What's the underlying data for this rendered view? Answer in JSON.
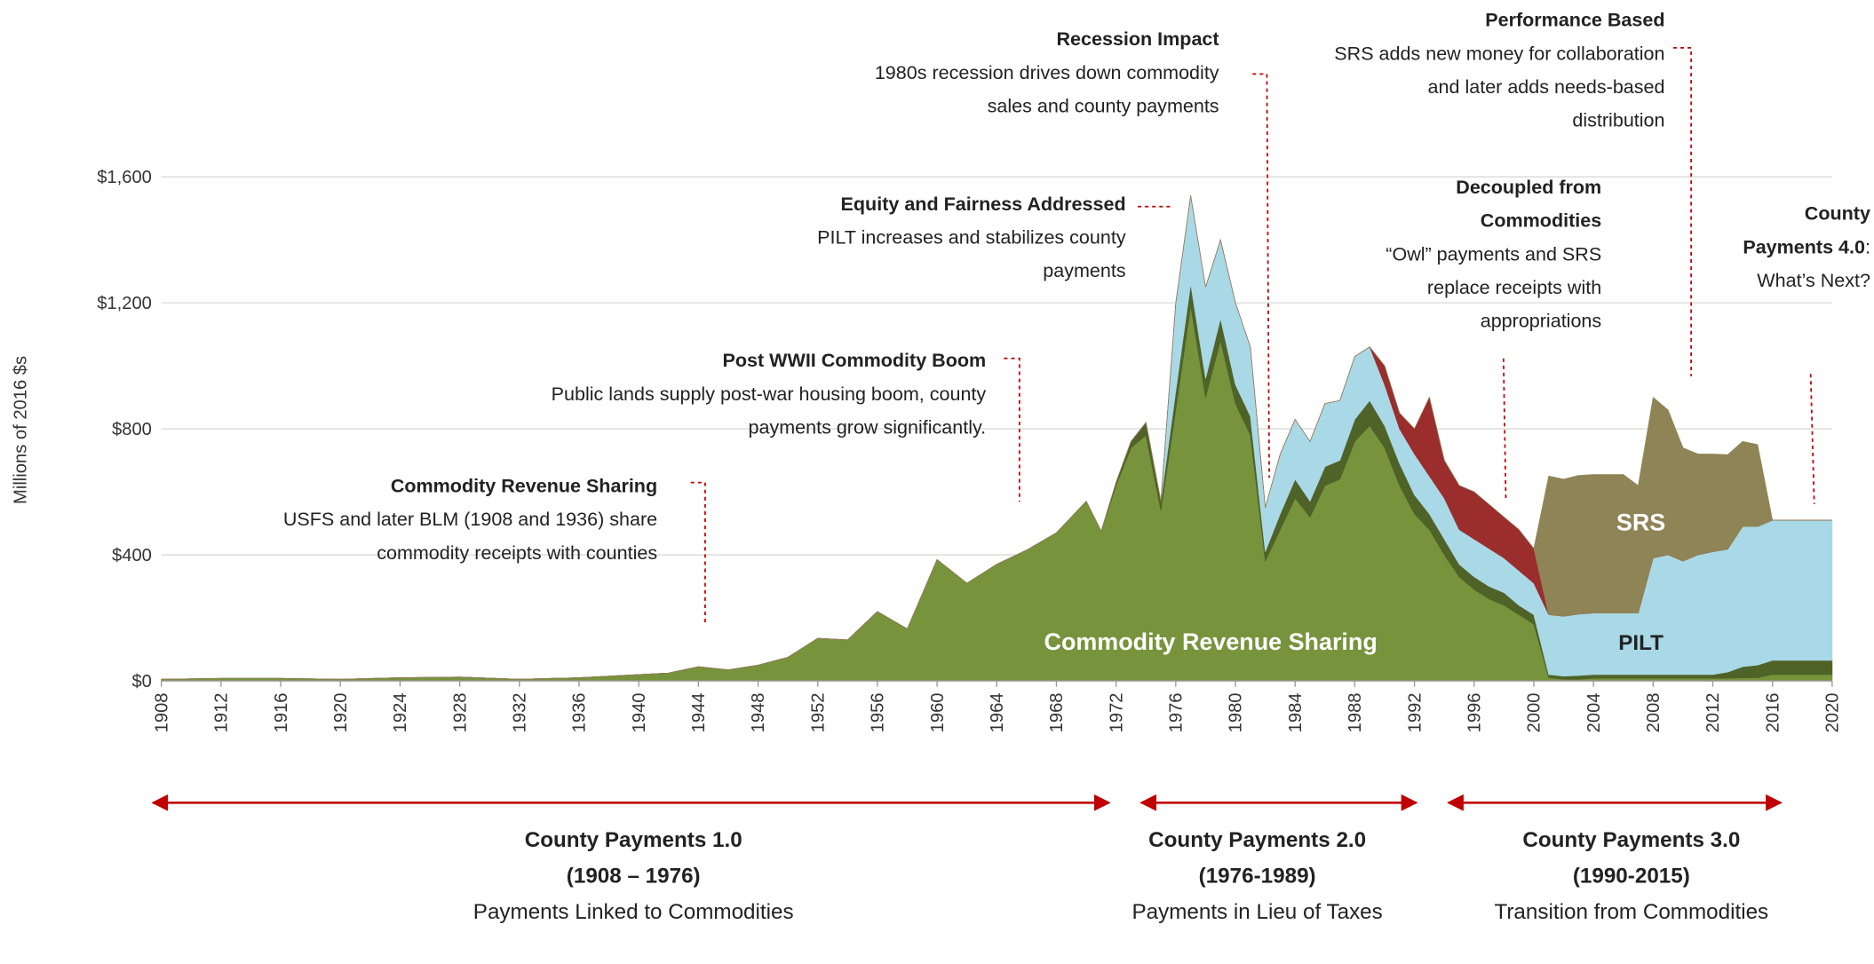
{
  "chart_data": {
    "type": "area",
    "y_label": "Millions of 2016 $s",
    "xlim": [
      1908,
      2020
    ],
    "ylim": [
      0,
      1600
    ],
    "grid": true,
    "yticks": [
      {
        "value": 0,
        "label": "$0"
      },
      {
        "value": 400,
        "label": "$400"
      },
      {
        "value": 800,
        "label": "$800"
      },
      {
        "value": 1200,
        "label": "$1,200"
      },
      {
        "value": 1600,
        "label": "$1,600"
      }
    ],
    "xticks": [
      1908,
      1912,
      1916,
      1920,
      1924,
      1928,
      1932,
      1936,
      1940,
      1944,
      1948,
      1952,
      1956,
      1960,
      1964,
      1968,
      1972,
      1976,
      1980,
      1984,
      1988,
      1992,
      1996,
      2000,
      2004,
      2008,
      2012,
      2016,
      2020
    ],
    "x": [
      1908,
      1912,
      1916,
      1920,
      1924,
      1928,
      1932,
      1936,
      1940,
      1942,
      1944,
      1946,
      1948,
      1950,
      1952,
      1954,
      1956,
      1958,
      1960,
      1962,
      1964,
      1966,
      1968,
      1970,
      1971,
      1972,
      1973,
      1974,
      1975,
      1976,
      1977,
      1978,
      1979,
      1980,
      1981,
      1982,
      1983,
      1984,
      1985,
      1986,
      1987,
      1988,
      1989,
      1990,
      1991,
      1992,
      1993,
      1994,
      1995,
      1996,
      1997,
      1998,
      1999,
      2000,
      2001,
      2002,
      2003,
      2004,
      2005,
      2006,
      2007,
      2008,
      2009,
      2010,
      2011,
      2012,
      2013,
      2014,
      2015,
      2016,
      2017,
      2018,
      2019,
      2020
    ],
    "series": [
      {
        "name": "Commodity Revenue Sharing",
        "color": "#77933c",
        "label_color": "#ffffff",
        "values": [
          5,
          8,
          8,
          5,
          10,
          12,
          5,
          10,
          20,
          25,
          45,
          35,
          50,
          75,
          135,
          130,
          220,
          165,
          385,
          310,
          370,
          415,
          470,
          570,
          475,
          620,
          740,
          780,
          540,
          860,
          1190,
          900,
          1080,
          880,
          780,
          380,
          480,
          580,
          520,
          620,
          640,
          760,
          810,
          740,
          620,
          530,
          480,
          400,
          330,
          290,
          260,
          240,
          210,
          180,
          10,
          5,
          5,
          8,
          8,
          8,
          8,
          8,
          8,
          8,
          8,
          8,
          8,
          10,
          10,
          20,
          20,
          20,
          20,
          20
        ]
      },
      {
        "color": "#4f6228",
        "values": [
          0,
          0,
          0,
          0,
          0,
          0,
          0,
          0,
          0,
          0,
          0,
          0,
          0,
          0,
          0,
          0,
          0,
          0,
          0,
          0,
          0,
          0,
          0,
          0,
          0,
          10,
          20,
          40,
          30,
          60,
          70,
          60,
          70,
          60,
          60,
          30,
          50,
          60,
          50,
          60,
          60,
          70,
          80,
          70,
          70,
          60,
          50,
          50,
          40,
          40,
          40,
          40,
          30,
          30,
          10,
          10,
          12,
          12,
          12,
          12,
          12,
          12,
          12,
          12,
          12,
          12,
          20,
          35,
          40,
          45,
          45,
          45,
          45,
          45
        ]
      },
      {
        "name": "PILT",
        "color": "#a9d9e6",
        "label_color": "#222222",
        "values": [
          0,
          0,
          0,
          0,
          0,
          0,
          0,
          0,
          0,
          0,
          0,
          0,
          0,
          0,
          0,
          0,
          0,
          0,
          0,
          0,
          0,
          0,
          0,
          0,
          0,
          0,
          0,
          0,
          0,
          280,
          280,
          290,
          250,
          260,
          220,
          140,
          190,
          190,
          190,
          200,
          190,
          200,
          170,
          130,
          110,
          130,
          120,
          130,
          110,
          120,
          120,
          110,
          110,
          100,
          190,
          190,
          195,
          195,
          195,
          195,
          195,
          370,
          380,
          360,
          380,
          390,
          390,
          445,
          440,
          445,
          445,
          445,
          445,
          445
        ]
      },
      {
        "color": "#9b2d2d",
        "values": [
          0,
          0,
          0,
          0,
          0,
          0,
          0,
          0,
          0,
          0,
          0,
          0,
          0,
          0,
          0,
          0,
          0,
          0,
          0,
          0,
          0,
          0,
          0,
          0,
          0,
          0,
          0,
          0,
          0,
          0,
          0,
          0,
          0,
          0,
          0,
          0,
          0,
          0,
          0,
          0,
          0,
          0,
          0,
          60,
          50,
          80,
          250,
          120,
          140,
          150,
          140,
          130,
          130,
          110,
          0,
          0,
          0,
          0,
          0,
          0,
          0,
          0,
          0,
          0,
          0,
          0,
          0,
          0,
          0,
          0,
          0,
          0,
          0,
          0
        ]
      },
      {
        "name": "SRS",
        "color": "#8f8456",
        "label_color": "#ffffff",
        "values": [
          0,
          0,
          0,
          0,
          0,
          0,
          0,
          0,
          0,
          0,
          0,
          0,
          0,
          0,
          0,
          0,
          0,
          0,
          0,
          0,
          0,
          0,
          0,
          0,
          0,
          0,
          0,
          0,
          0,
          0,
          0,
          0,
          0,
          0,
          0,
          0,
          0,
          0,
          0,
          0,
          0,
          0,
          0,
          0,
          0,
          0,
          0,
          0,
          0,
          0,
          0,
          0,
          0,
          0,
          440,
          435,
          440,
          440,
          440,
          440,
          405,
          510,
          460,
          360,
          320,
          310,
          300,
          270,
          260,
          0,
          0,
          0,
          0,
          0
        ]
      }
    ],
    "annotations": [
      {
        "title": "Commodity Revenue Sharing",
        "text": "USFS and later BLM (1908 and 1936) share commodity receipts with counties"
      },
      {
        "title": "Post WWII Commodity Boom",
        "text": "Public lands supply post-war housing boom, county payments grow significantly."
      },
      {
        "title": "Equity and Fairness Addressed",
        "text": " PILT increases and stabilizes county payments"
      },
      {
        "title": "Recession Impact",
        "text": "1980s recession drives down commodity sales and county payments"
      },
      {
        "title": "Decoupled from Commodities",
        "text": "“Owl” payments and SRS replace receipts with appropriations"
      },
      {
        "title": "Performance Based",
        "text": "SRS adds new money for collaboration and later adds needs-based distribution"
      },
      {
        "title": "County Payments 4.0",
        "text": ": What’s Next?"
      }
    ],
    "periods": [
      {
        "title": "County Payments 1.0",
        "years": "(1908 – 1976)",
        "text": "Payments Linked to Commodities"
      },
      {
        "title": "County Payments 2.0",
        "years": "(1976-1989)",
        "text": "Payments in Lieu of Taxes"
      },
      {
        "title": "County Payments 3.0",
        "years": "(1990-2015)",
        "text": "Transition from Commodities"
      }
    ]
  }
}
